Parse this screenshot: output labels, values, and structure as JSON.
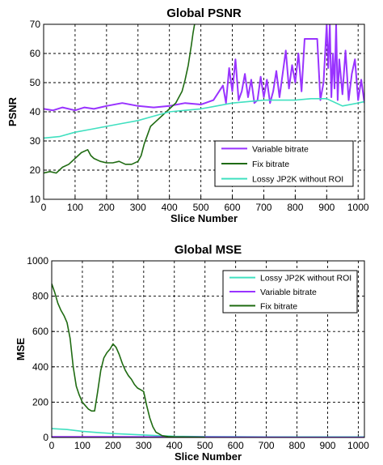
{
  "colors": {
    "variable_bitrate": "#9933ff",
    "fix_bitrate": "#1f6b12",
    "lossy_jp2k": "#40e0c0"
  },
  "chart_data": [
    {
      "type": "line",
      "title": "Global PSNR",
      "xlabel": "Slice Number",
      "ylabel": "PSNR",
      "xlim": [
        0,
        1020
      ],
      "ylim": [
        10,
        70
      ],
      "xticks": [
        "0",
        "100",
        "200",
        "300",
        "400",
        "500",
        "600",
        "700",
        "800",
        "900",
        "1000"
      ],
      "yticks": [
        "10",
        "20",
        "30",
        "40",
        "50",
        "60",
        "70"
      ],
      "grid": true,
      "legend_position": "lower-right",
      "legend": [
        "Variable bitrate",
        "Fix bitrate",
        "Lossy JP2K without ROI"
      ],
      "series": [
        {
          "name": "Variable bitrate",
          "color": "#9933ff",
          "x": [
            0,
            30,
            60,
            100,
            130,
            160,
            200,
            250,
            300,
            350,
            400,
            450,
            500,
            540,
            570,
            580,
            590,
            600,
            610,
            620,
            630,
            640,
            650,
            660,
            670,
            680,
            690,
            700,
            710,
            720,
            730,
            740,
            750,
            760,
            770,
            780,
            790,
            800,
            810,
            820,
            830,
            840,
            850,
            860,
            870,
            880,
            890,
            900,
            905,
            910,
            915,
            920,
            925,
            930,
            935,
            940,
            950,
            960,
            970,
            980,
            990,
            1000,
            1010,
            1020
          ],
          "y": [
            41,
            40.5,
            41.5,
            40.5,
            41.5,
            41,
            42,
            43,
            42,
            41.5,
            42,
            43,
            42.5,
            44,
            49,
            43,
            55,
            47,
            58,
            44,
            47,
            53,
            45,
            51,
            43,
            44,
            52,
            45,
            51,
            43,
            47,
            54,
            45,
            53,
            61,
            48,
            56,
            50,
            60,
            47,
            65,
            65,
            65,
            65,
            65,
            44,
            50,
            70,
            55,
            70,
            45,
            60,
            48,
            70,
            44,
            58,
            46,
            61,
            44,
            53,
            58,
            44,
            51,
            43
          ]
        },
        {
          "name": "Fix bitrate",
          "color": "#1f6b12",
          "x": [
            0,
            20,
            40,
            60,
            80,
            100,
            120,
            140,
            150,
            160,
            180,
            200,
            220,
            240,
            260,
            280,
            300,
            310,
            320,
            330,
            340,
            360,
            380,
            400,
            420,
            440,
            450,
            460,
            470,
            475,
            480
          ],
          "y": [
            19,
            19.5,
            19,
            21,
            22,
            24,
            26,
            27,
            25,
            24,
            23,
            22.5,
            22.5,
            23,
            22,
            22,
            23,
            25,
            29,
            32,
            35,
            37,
            39,
            41,
            43,
            47,
            51,
            56,
            63,
            67,
            70
          ]
        },
        {
          "name": "Lossy JP2K without ROI",
          "color": "#40e0c0",
          "x": [
            0,
            50,
            100,
            150,
            200,
            250,
            300,
            350,
            400,
            450,
            500,
            550,
            600,
            650,
            700,
            750,
            800,
            850,
            900,
            950,
            1000,
            1020
          ],
          "y": [
            31,
            31.5,
            33,
            34,
            35,
            36,
            37,
            38.5,
            40,
            40.5,
            41,
            42,
            43,
            43.5,
            44,
            44,
            44,
            44.5,
            44.5,
            42,
            43,
            43.5
          ]
        }
      ]
    },
    {
      "type": "line",
      "title": "Global MSE",
      "xlabel": "Slice Number",
      "ylabel": "MSE",
      "xlim": [
        0,
        1020
      ],
      "ylim": [
        0,
        1000
      ],
      "xticks": [
        "0",
        "100",
        "200",
        "300",
        "400",
        "500",
        "600",
        "700",
        "800",
        "900",
        "1000"
      ],
      "yticks": [
        "0",
        "200",
        "400",
        "600",
        "800",
        "1000"
      ],
      "grid": true,
      "legend_position": "top-right",
      "legend": [
        "Lossy JP2K without ROI",
        "Variable bitrate",
        "Fix bitrate"
      ],
      "series": [
        {
          "name": "Lossy JP2K without ROI",
          "color": "#40e0c0",
          "x": [
            0,
            50,
            100,
            150,
            200,
            250,
            300,
            350,
            400,
            500,
            600,
            700,
            800,
            900,
            1000,
            1020
          ],
          "y": [
            50,
            45,
            35,
            28,
            22,
            18,
            14,
            10,
            7,
            5,
            4,
            3,
            3,
            3,
            3,
            3
          ]
        },
        {
          "name": "Variable bitrate",
          "color": "#9933ff",
          "x": [
            0,
            200,
            400,
            600,
            800,
            1000,
            1020
          ],
          "y": [
            4,
            4,
            3,
            2,
            1,
            1,
            1
          ]
        },
        {
          "name": "Fix bitrate",
          "color": "#1f6b12",
          "x": [
            0,
            10,
            20,
            30,
            40,
            50,
            60,
            70,
            80,
            90,
            100,
            110,
            120,
            130,
            140,
            150,
            160,
            170,
            180,
            190,
            200,
            210,
            220,
            230,
            240,
            250,
            260,
            270,
            280,
            290,
            300,
            310,
            320,
            330,
            340,
            350,
            360,
            380,
            400,
            450,
            500
          ],
          "y": [
            870,
            820,
            760,
            720,
            690,
            650,
            560,
            400,
            290,
            240,
            200,
            180,
            160,
            150,
            150,
            260,
            380,
            450,
            480,
            500,
            530,
            510,
            470,
            420,
            380,
            350,
            330,
            300,
            280,
            270,
            260,
            180,
            110,
            60,
            30,
            20,
            10,
            5,
            3,
            2,
            1
          ]
        }
      ]
    }
  ]
}
